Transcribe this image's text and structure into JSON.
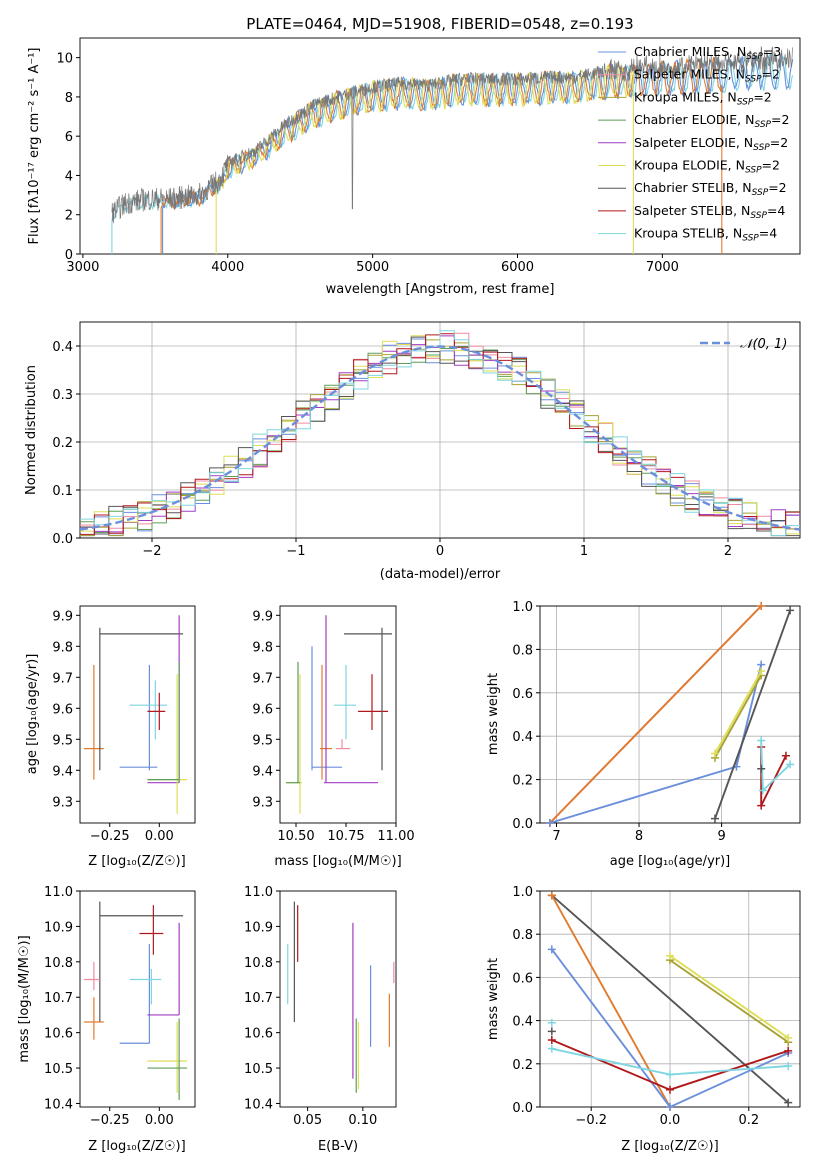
{
  "colors": {
    "royal": "#6a8fdc",
    "orange": "#e07b2e",
    "pink": "#f08ca0",
    "olive": "#a8a236",
    "green": "#5e9e58",
    "purple": "#a23bc4",
    "yellow": "#dede58",
    "gray": "#555555",
    "red": "#b0181c",
    "cyan": "#7ed6e0",
    "grid": "#b0b0b0",
    "spectrum_gray": "#777777"
  },
  "chart_data": [
    {
      "id": "spectrum",
      "type": "line",
      "title": "PLATE=0464, MJD=51908, FIBERID=0548, z=0.193",
      "xlabel": "wavelength [Angstrom, rest frame]",
      "ylabel": "Flux [f_λ10^{-17} erg cm^{-2} s^{-1} A^{-1}]",
      "xlim": [
        2980,
        7950
      ],
      "ylim": [
        0,
        11
      ],
      "xticks": [
        3000,
        4000,
        5000,
        6000,
        7000
      ],
      "yticks": [
        0,
        2,
        4,
        6,
        8,
        10
      ],
      "grid": false,
      "legend_position": "top-right",
      "legend": [
        {
          "label": "Chabrier MILES, N_SSP=3",
          "color": "royal"
        },
        {
          "label": "Salpeter MILES, N_SSP=2",
          "color": "pink"
        },
        {
          "label": "Kroupa MILES, N_SSP=2",
          "color": "olive"
        },
        {
          "label": "Chabrier ELODIE, N_SSP=2",
          "color": "green"
        },
        {
          "label": "Salpeter ELODIE, N_SSP=2",
          "color": "purple"
        },
        {
          "label": "Kroupa ELODIE, N_SSP=2",
          "color": "yellow"
        },
        {
          "label": "Chabrier STELIB, N_SSP=2",
          "color": "gray"
        },
        {
          "label": "Salpeter STELIB, N_SSP=4",
          "color": "red"
        },
        {
          "label": "Kroupa STELIB, N_SSP=4",
          "color": "cyan"
        }
      ],
      "continuum": [
        [
          3200,
          2.1
        ],
        [
          3300,
          2.6
        ],
        [
          3450,
          2.8
        ],
        [
          3600,
          2.8
        ],
        [
          3800,
          3.0
        ],
        [
          3950,
          3.8
        ],
        [
          4000,
          4.6
        ],
        [
          4200,
          5.3
        ],
        [
          4400,
          6.6
        ],
        [
          4600,
          7.6
        ],
        [
          4800,
          8.1
        ],
        [
          5000,
          8.5
        ],
        [
          5200,
          8.7
        ],
        [
          5400,
          8.6
        ],
        [
          5600,
          8.9
        ],
        [
          5800,
          8.9
        ],
        [
          6000,
          8.9
        ],
        [
          6200,
          9.0
        ],
        [
          6400,
          9.0
        ],
        [
          6600,
          9.3
        ],
        [
          6800,
          9.4
        ],
        [
          7000,
          9.5
        ],
        [
          7200,
          9.6
        ],
        [
          7400,
          9.7
        ],
        [
          7600,
          9.8
        ],
        [
          7900,
          9.9
        ]
      ],
      "fit_ranges": [
        {
          "color": "cyan",
          "x_start": 3200,
          "x_end": 7900
        },
        {
          "color": "royal",
          "x_start": 3550,
          "x_end": 7900
        },
        {
          "color": "orange",
          "x_start": 3540,
          "x_end": 7410
        },
        {
          "color": "yellow",
          "x_start": 3920,
          "x_end": 6800
        }
      ]
    },
    {
      "id": "residual_histogram",
      "type": "histogram",
      "xlabel": "(data-model)/error",
      "ylabel": "Normed distribution",
      "xlim": [
        -2.5,
        2.5
      ],
      "ylim": [
        0,
        0.45
      ],
      "xticks": [
        -2,
        -1,
        0,
        1,
        2
      ],
      "yticks": [
        0.0,
        0.1,
        0.2,
        0.3,
        0.4
      ],
      "grid": true,
      "legend_position": "top-right",
      "legend": [
        {
          "label": "N(0,1)",
          "style": "dashed",
          "color": "royal"
        }
      ],
      "bin_width": 0.1,
      "series_colors": [
        "royal",
        "pink",
        "olive",
        "green",
        "purple",
        "yellow",
        "gray",
        "red",
        "cyan"
      ]
    },
    {
      "id": "age_vs_Z",
      "type": "errorbar",
      "xlabel": "Z [log10(Z/Z_sun)]",
      "ylabel": "age [log10(age/yr)]",
      "xlim": [
        -0.4,
        0.18
      ],
      "ylim": [
        9.23,
        9.93
      ],
      "xticks": [
        -0.25,
        0.0
      ],
      "yticks": [
        9.3,
        9.4,
        9.5,
        9.6,
        9.7,
        9.8,
        9.9
      ],
      "points": [
        {
          "color": "orange",
          "x": -0.33,
          "xlo": -0.38,
          "xhi": -0.28,
          "y": 9.47,
          "ylo": 9.37,
          "yhi": 9.74
        },
        {
          "color": "gray",
          "x": -0.3,
          "xlo": -0.3,
          "xhi": 0.12,
          "y": 9.84,
          "ylo": 9.4,
          "yhi": 9.86
        },
        {
          "color": "royal",
          "x": -0.05,
          "xlo": -0.2,
          "xhi": -0.01,
          "y": 9.41,
          "ylo": 9.4,
          "yhi": 9.74
        },
        {
          "color": "cyan",
          "x": -0.02,
          "xlo": -0.15,
          "xhi": 0.04,
          "y": 9.61,
          "ylo": 9.5,
          "yhi": 9.69
        },
        {
          "color": "red",
          "x": 0.0,
          "xlo": -0.06,
          "xhi": 0.03,
          "y": 9.59,
          "ylo": 9.53,
          "yhi": 9.65
        },
        {
          "color": "purple",
          "x": 0.1,
          "xlo": -0.06,
          "xhi": 0.1,
          "y": 9.36,
          "ylo": 9.36,
          "yhi": 9.9
        },
        {
          "color": "yellow",
          "x": 0.09,
          "xlo": -0.06,
          "xhi": 0.14,
          "y": 9.37,
          "ylo": 9.26,
          "yhi": 9.71
        },
        {
          "color": "green",
          "x": 0.1,
          "xlo": -0.06,
          "xhi": 0.1,
          "y": 9.37,
          "ylo": 9.36,
          "yhi": 9.75
        }
      ]
    },
    {
      "id": "age_vs_mass",
      "type": "errorbar",
      "xlabel": "mass [log10(M/M_sun)]",
      "ylabel": "",
      "xlim": [
        10.42,
        11.0
      ],
      "ylim": [
        9.23,
        9.93
      ],
      "xticks": [
        10.5,
        10.75,
        11.0
      ],
      "yticks": [
        9.3,
        9.4,
        9.5,
        9.6,
        9.7,
        9.8,
        9.9
      ],
      "points": [
        {
          "color": "yellow",
          "x": 10.52,
          "xlo": 10.45,
          "xhi": 10.53,
          "y": 9.36,
          "ylo": 9.26,
          "yhi": 9.71
        },
        {
          "color": "green",
          "x": 10.51,
          "xlo": 10.45,
          "xhi": 10.52,
          "y": 9.36,
          "ylo": 9.36,
          "yhi": 9.75
        },
        {
          "color": "royal",
          "x": 10.58,
          "xlo": 10.58,
          "xhi": 10.73,
          "y": 9.41,
          "ylo": 9.4,
          "yhi": 9.8
        },
        {
          "color": "orange",
          "x": 10.63,
          "xlo": 10.62,
          "xhi": 10.68,
          "y": 9.47,
          "ylo": 9.37,
          "yhi": 9.74
        },
        {
          "color": "purple",
          "x": 10.65,
          "xlo": 10.64,
          "xhi": 10.91,
          "y": 9.36,
          "ylo": 9.36,
          "yhi": 9.9
        },
        {
          "color": "pink",
          "x": 10.73,
          "xlo": 10.7,
          "xhi": 10.77,
          "y": 9.47,
          "ylo": 9.47,
          "yhi": 9.5
        },
        {
          "color": "cyan",
          "x": 10.75,
          "xlo": 10.69,
          "xhi": 10.8,
          "y": 9.61,
          "ylo": 9.5,
          "yhi": 9.74
        },
        {
          "color": "red",
          "x": 10.88,
          "xlo": 10.81,
          "xhi": 10.96,
          "y": 9.59,
          "ylo": 9.53,
          "yhi": 9.71
        },
        {
          "color": "gray",
          "x": 10.93,
          "xlo": 10.74,
          "xhi": 10.98,
          "y": 9.84,
          "ylo": 9.4,
          "yhi": 9.86
        }
      ]
    },
    {
      "id": "mass_weight_vs_age",
      "type": "line",
      "xlabel": "age [log10(age/yr)]",
      "ylabel": "mass weight",
      "xlim": [
        6.8,
        9.95
      ],
      "ylim": [
        0,
        1.0
      ],
      "xticks": [
        7,
        8,
        9
      ],
      "yticks": [
        0.0,
        0.2,
        0.4,
        0.6,
        0.8,
        1.0
      ],
      "grid": true,
      "series": [
        {
          "color": "pink",
          "x": [
            6.92,
            9.48
          ],
          "y": [
            0.0,
            1.0
          ]
        },
        {
          "color": "orange",
          "x": [
            6.92,
            9.48
          ],
          "y": [
            0.0,
            1.0
          ]
        },
        {
          "color": "royal",
          "x": [
            6.92,
            9.18,
            9.48
          ],
          "y": [
            0.0,
            0.26,
            0.73
          ]
        },
        {
          "color": "gray",
          "x": [
            8.92,
            9.83
          ],
          "y": [
            0.02,
            0.98
          ]
        },
        {
          "color": "olive",
          "x": [
            8.92,
            9.48
          ],
          "y": [
            0.3,
            0.68
          ]
        },
        {
          "color": "yellow",
          "x": [
            8.92,
            9.48
          ],
          "y": [
            0.32,
            0.7
          ]
        },
        {
          "color": "red",
          "x": [
            9.48,
            9.48,
            9.78
          ],
          "y": [
            0.35,
            0.08,
            0.31
          ]
        },
        {
          "color": "cyan",
          "x": [
            9.48,
            9.5,
            9.83
          ],
          "y": [
            0.38,
            0.15,
            0.27
          ]
        },
        {
          "color": "gray",
          "x": [
            9.48
          ],
          "y": [
            0.25
          ]
        }
      ]
    },
    {
      "id": "mass_vs_Z",
      "type": "errorbar",
      "xlabel": "Z [log10(Z/Z_sun)]",
      "ylabel": "mass [log10(M/M_sun)]",
      "xlim": [
        -0.4,
        0.18
      ],
      "ylim": [
        10.39,
        11.0
      ],
      "xticks": [
        -0.25,
        0.0
      ],
      "yticks": [
        10.4,
        10.5,
        10.6,
        10.7,
        10.8,
        10.9,
        11.0
      ],
      "points": [
        {
          "color": "gray",
          "x": -0.3,
          "xlo": -0.3,
          "xhi": 0.12,
          "y": 10.93,
          "ylo": 10.63,
          "yhi": 10.97
        },
        {
          "color": "orange",
          "x": -0.33,
          "xlo": -0.38,
          "xhi": -0.28,
          "y": 10.63,
          "ylo": 10.58,
          "yhi": 10.7
        },
        {
          "color": "pink",
          "x": -0.33,
          "xlo": -0.38,
          "xhi": -0.3,
          "y": 10.75,
          "ylo": 10.72,
          "yhi": 10.8
        },
        {
          "color": "royal",
          "x": -0.05,
          "xlo": -0.2,
          "xhi": -0.05,
          "y": 10.57,
          "ylo": 10.57,
          "yhi": 10.85
        },
        {
          "color": "cyan",
          "x": -0.04,
          "xlo": -0.15,
          "xhi": 0.01,
          "y": 10.75,
          "ylo": 10.68,
          "yhi": 10.78
        },
        {
          "color": "red",
          "x": -0.03,
          "xlo": -0.1,
          "xhi": 0.02,
          "y": 10.88,
          "ylo": 10.82,
          "yhi": 10.96
        },
        {
          "color": "purple",
          "x": 0.1,
          "xlo": -0.06,
          "xhi": 0.1,
          "y": 10.65,
          "ylo": 10.65,
          "yhi": 10.91
        },
        {
          "color": "yellow",
          "x": 0.09,
          "xlo": -0.06,
          "xhi": 0.14,
          "y": 10.52,
          "ylo": 10.43,
          "yhi": 10.63
        },
        {
          "color": "green",
          "x": 0.1,
          "xlo": -0.06,
          "xhi": 0.14,
          "y": 10.5,
          "ylo": 10.41,
          "yhi": 10.64
        }
      ]
    },
    {
      "id": "mass_vs_EBV",
      "type": "errorbar",
      "xlabel": "E(B-V)",
      "ylabel": "",
      "xlim": [
        0.025,
        0.13
      ],
      "ylim": [
        10.39,
        11.0
      ],
      "xticks": [
        0.05,
        0.1
      ],
      "yticks": [
        10.4,
        10.5,
        10.6,
        10.7,
        10.8,
        10.9,
        11.0
      ],
      "points": [
        {
          "color": "cyan",
          "x": 0.032,
          "xlo": 0.032,
          "xhi": 0.032,
          "y": 10.75,
          "ylo": 10.68,
          "yhi": 10.85
        },
        {
          "color": "gray",
          "x": 0.038,
          "xlo": 0.038,
          "xhi": 0.038,
          "y": 10.8,
          "ylo": 10.63,
          "yhi": 10.97
        },
        {
          "color": "red",
          "x": 0.041,
          "xlo": 0.041,
          "xhi": 0.041,
          "y": 10.88,
          "ylo": 10.8,
          "yhi": 10.96
        },
        {
          "color": "purple",
          "x": 0.091,
          "xlo": 0.091,
          "xhi": 0.091,
          "y": 10.65,
          "ylo": 10.47,
          "yhi": 10.91
        },
        {
          "color": "green",
          "x": 0.094,
          "xlo": 0.094,
          "xhi": 0.094,
          "y": 10.5,
          "ylo": 10.43,
          "yhi": 10.64
        },
        {
          "color": "yellow",
          "x": 0.096,
          "xlo": 0.096,
          "xhi": 0.096,
          "y": 10.52,
          "ylo": 10.44,
          "yhi": 10.63
        },
        {
          "color": "royal",
          "x": 0.107,
          "xlo": 0.107,
          "xhi": 0.107,
          "y": 10.68,
          "ylo": 10.56,
          "yhi": 10.79
        },
        {
          "color": "orange",
          "x": 0.124,
          "xlo": 0.124,
          "xhi": 0.124,
          "y": 10.62,
          "ylo": 10.56,
          "yhi": 10.71
        },
        {
          "color": "pink",
          "x": 0.128,
          "xlo": 0.128,
          "xhi": 0.128,
          "y": 10.77,
          "ylo": 10.74,
          "yhi": 10.8
        }
      ]
    },
    {
      "id": "mass_weight_vs_Z",
      "type": "line",
      "xlabel": "Z [log10(Z/Z_sun)]",
      "ylabel": "mass weight",
      "xlim": [
        -0.33,
        0.33
      ],
      "ylim": [
        0,
        1.0
      ],
      "xticks": [
        -0.2,
        0.0,
        0.2
      ],
      "yticks": [
        0.0,
        0.2,
        0.4,
        0.6,
        0.8,
        1.0
      ],
      "grid": true,
      "series": [
        {
          "color": "gray",
          "x": [
            -0.3,
            0.3
          ],
          "y": [
            0.98,
            0.02
          ]
        },
        {
          "color": "orange",
          "x": [
            -0.3,
            0.0
          ],
          "y": [
            0.98,
            0.0
          ]
        },
        {
          "color": "royal",
          "x": [
            -0.3,
            0.0,
            0.3
          ],
          "y": [
            0.73,
            0.0,
            0.25
          ]
        },
        {
          "color": "olive",
          "x": [
            0.0,
            0.3
          ],
          "y": [
            0.68,
            0.3
          ]
        },
        {
          "color": "yellow",
          "x": [
            0.0,
            0.3
          ],
          "y": [
            0.7,
            0.32
          ]
        },
        {
          "color": "red",
          "x": [
            -0.3,
            0.0,
            0.3
          ],
          "y": [
            0.31,
            0.08,
            0.26
          ]
        },
        {
          "color": "cyan",
          "x": [
            -0.3,
            0.0,
            0.3
          ],
          "y": [
            0.27,
            0.15,
            0.19
          ]
        },
        {
          "color": "gray",
          "x": [
            -0.3
          ],
          "y": [
            0.35
          ]
        },
        {
          "color": "cyan",
          "x": [
            -0.3
          ],
          "y": [
            0.39
          ]
        }
      ]
    }
  ]
}
